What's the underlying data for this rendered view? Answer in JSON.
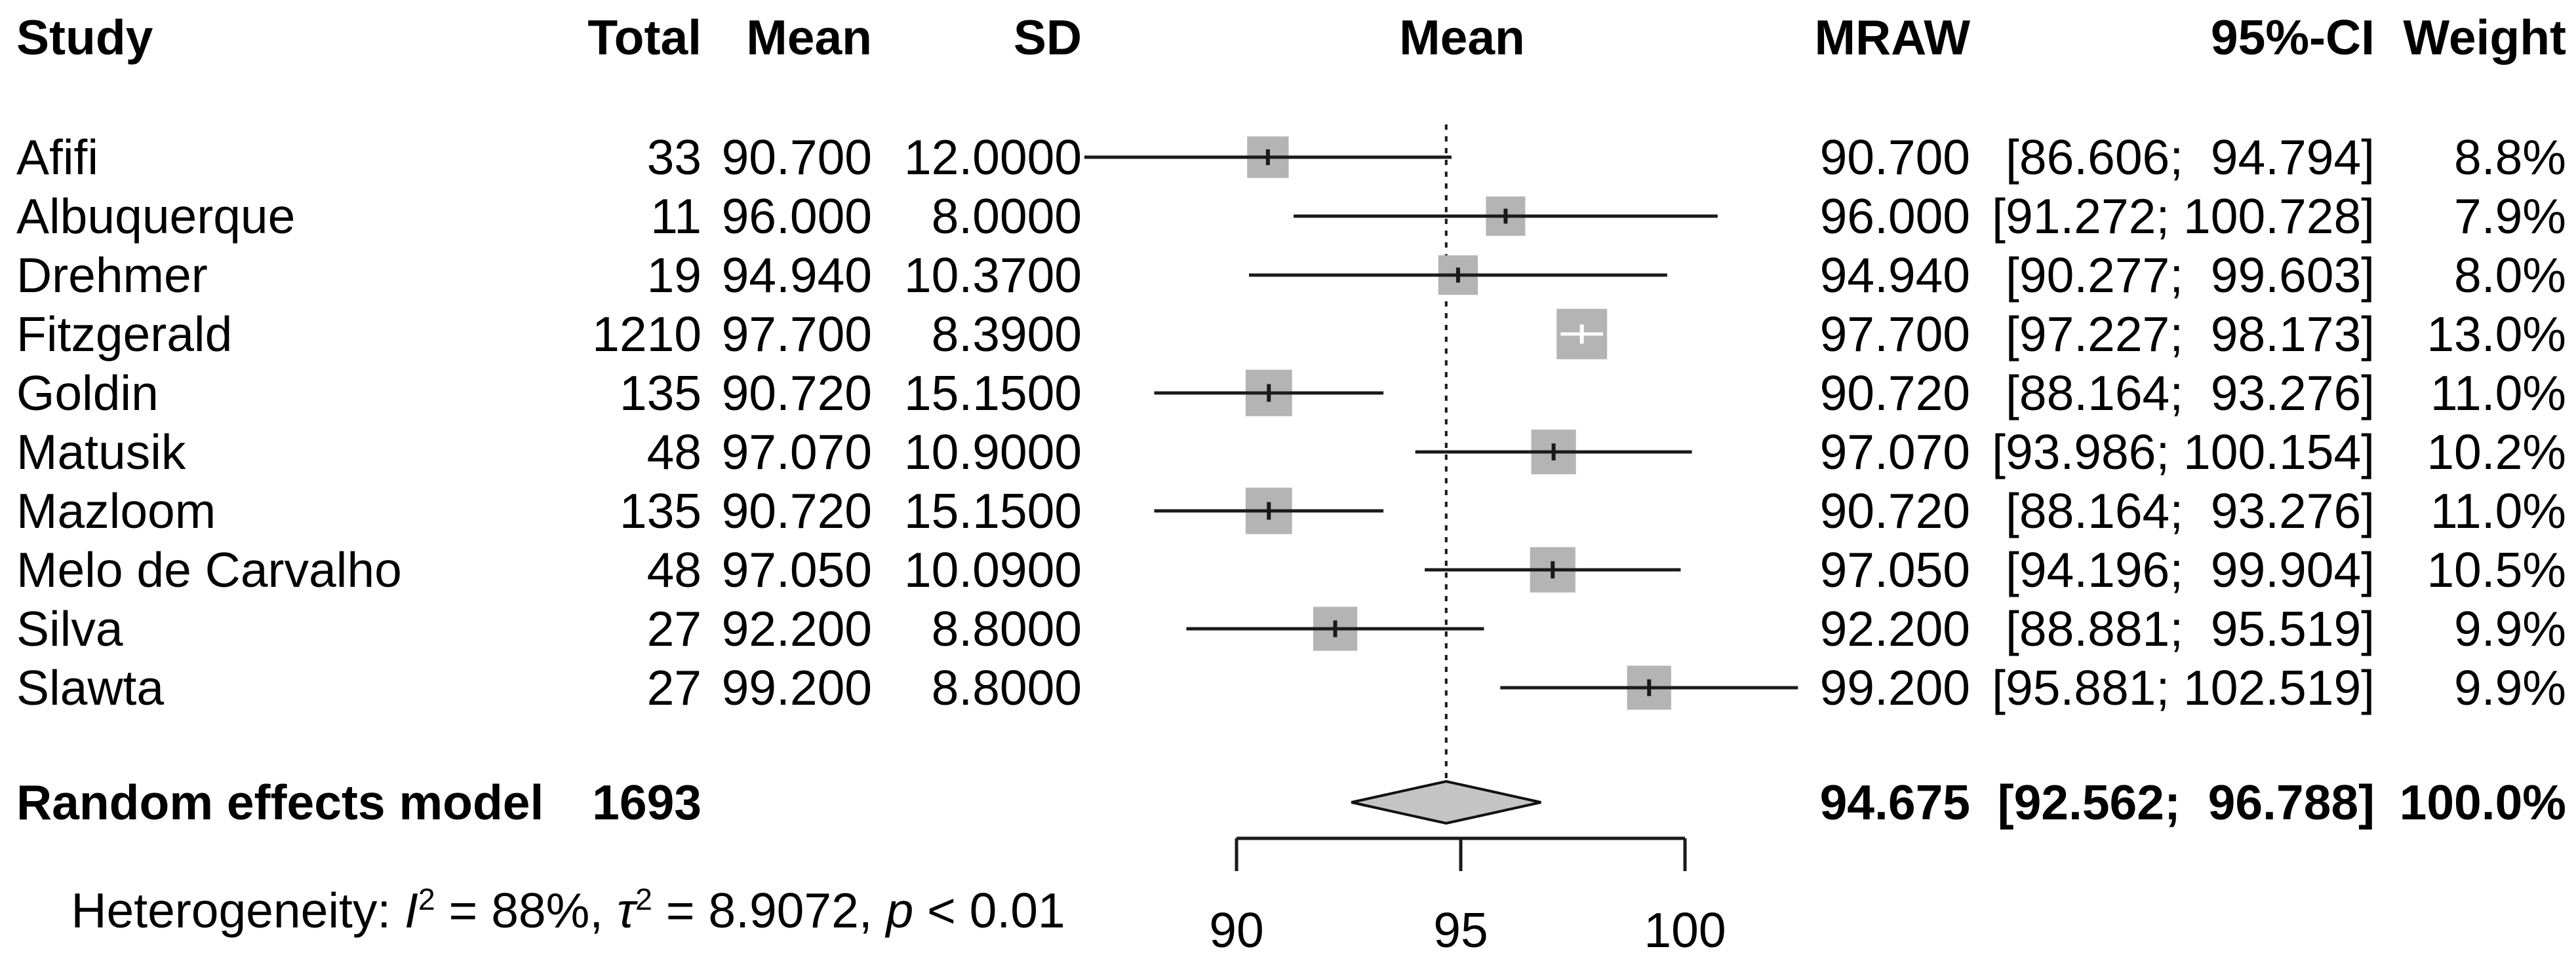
{
  "header": {
    "study": "Study",
    "total": "Total",
    "mean": "Mean",
    "sd": "SD",
    "plot_mean": "Mean",
    "mraw": "MRAW",
    "ci": "95%-CI",
    "weight": "Weight"
  },
  "summary": {
    "label": "Random effects model",
    "total": "1693",
    "mraw": "94.675",
    "ci_text": "[92.562;  96.788]",
    "weight_text": "100.0%"
  },
  "heterogeneity": {
    "parts": [
      {
        "t": "Heterogeneity: "
      },
      {
        "t": "I"
      },
      {
        "t": "2"
      },
      {
        "t": " = 88%, "
      },
      {
        "t": "τ"
      },
      {
        "t": "2"
      },
      {
        "t": " = 8.9072, "
      },
      {
        "t": "p"
      },
      {
        "t": " < 0.01"
      }
    ]
  },
  "colors": {
    "line": "#1a1a1a",
    "square": "#b4b4b4",
    "diamond_fill": "#c4c4c4",
    "diamond_border": "#111111",
    "inside_ci": "#ffffff"
  },
  "chart_data": {
    "type": "forest",
    "effect_measure": "Mean",
    "axis": {
      "ticks": [
        90,
        95,
        100
      ],
      "tick_labels": [
        "90",
        "95",
        "100"
      ],
      "range": [
        90,
        100
      ],
      "grid": false
    },
    "reference_value": 94.675,
    "studies": [
      {
        "name": "Afifi",
        "total": "33",
        "mean": "90.700",
        "sd": "12.0000",
        "est": 90.7,
        "lo": 86.606,
        "hi": 94.794,
        "weight": 8.8,
        "mraw": "90.700",
        "ci_text": "[86.606;  94.794]",
        "weight_text": "8.8%"
      },
      {
        "name": "Albuquerque",
        "total": "11",
        "mean": "96.000",
        "sd": "8.0000",
        "est": 96.0,
        "lo": 91.272,
        "hi": 100.728,
        "weight": 7.9,
        "mraw": "96.000",
        "ci_text": "[91.272; 100.728]",
        "weight_text": "7.9%"
      },
      {
        "name": "Drehmer",
        "total": "19",
        "mean": "94.940",
        "sd": "10.3700",
        "est": 94.94,
        "lo": 90.277,
        "hi": 99.603,
        "weight": 8.0,
        "mraw": "94.940",
        "ci_text": "[90.277;  99.603]",
        "weight_text": "8.0%"
      },
      {
        "name": "Fitzgerald",
        "total": "1210",
        "mean": "97.700",
        "sd": "8.3900",
        "est": 97.7,
        "lo": 97.227,
        "hi": 98.173,
        "weight": 13.0,
        "mraw": "97.700",
        "ci_text": "[97.227;  98.173]",
        "weight_text": "13.0%"
      },
      {
        "name": "Goldin",
        "total": "135",
        "mean": "90.720",
        "sd": "15.1500",
        "est": 90.72,
        "lo": 88.164,
        "hi": 93.276,
        "weight": 11.0,
        "mraw": "90.720",
        "ci_text": "[88.164;  93.276]",
        "weight_text": "11.0%"
      },
      {
        "name": "Matusik",
        "total": "48",
        "mean": "97.070",
        "sd": "10.9000",
        "est": 97.07,
        "lo": 93.986,
        "hi": 100.154,
        "weight": 10.2,
        "mraw": "97.070",
        "ci_text": "[93.986; 100.154]",
        "weight_text": "10.2%"
      },
      {
        "name": "Mazloom",
        "total": "135",
        "mean": "90.720",
        "sd": "15.1500",
        "est": 90.72,
        "lo": 88.164,
        "hi": 93.276,
        "weight": 11.0,
        "mraw": "90.720",
        "ci_text": "[88.164;  93.276]",
        "weight_text": "11.0%"
      },
      {
        "name": "Melo de Carvalho",
        "total": "48",
        "mean": "97.050",
        "sd": "10.0900",
        "est": 97.05,
        "lo": 94.196,
        "hi": 99.904,
        "weight": 10.5,
        "mraw": "97.050",
        "ci_text": "[94.196;  99.904]",
        "weight_text": "10.5%"
      },
      {
        "name": "Silva",
        "total": "27",
        "mean": "92.200",
        "sd": "8.8000",
        "est": 92.2,
        "lo": 88.881,
        "hi": 95.519,
        "weight": 9.9,
        "mraw": "92.200",
        "ci_text": "[88.881;  95.519]",
        "weight_text": "9.9%"
      },
      {
        "name": "Slawta",
        "total": "27",
        "mean": "99.200",
        "sd": "8.8000",
        "est": 99.2,
        "lo": 95.881,
        "hi": 102.519,
        "weight": 9.9,
        "mraw": "99.200",
        "ci_text": "[95.881; 102.519]",
        "weight_text": "9.9%"
      }
    ],
    "summary": {
      "label": "Random effects model",
      "total": 1693,
      "est": 94.675,
      "lo": 92.562,
      "hi": 96.788,
      "weight": 100.0
    },
    "heterogeneity_text": "Heterogeneity: I² = 88%, τ² = 8.9072, p < 0.01"
  }
}
